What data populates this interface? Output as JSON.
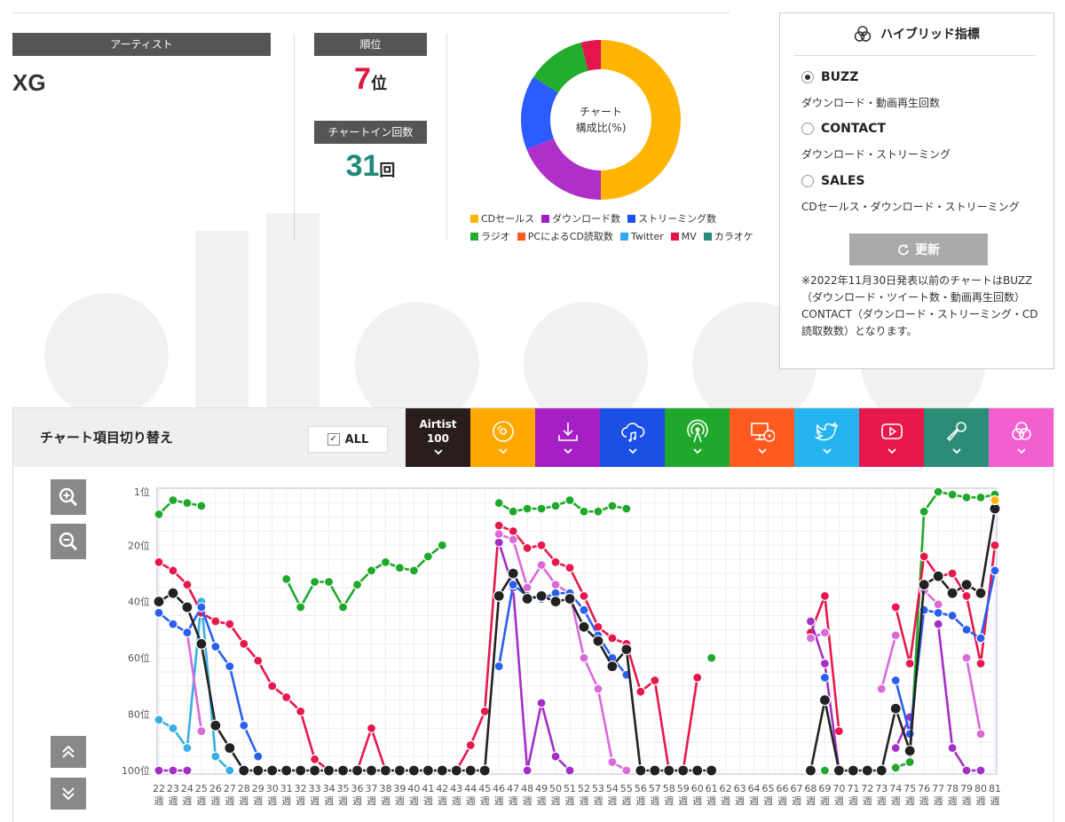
{
  "artist": {
    "label": "アーティスト",
    "name": "XG"
  },
  "rank": {
    "label": "順位",
    "value": "7",
    "unit": "位"
  },
  "chartin": {
    "label": "チャートイン回数",
    "value": "31",
    "unit": "回"
  },
  "donut": {
    "center_line1": "チャート",
    "center_line2": "構成比(%)",
    "slices": [
      {
        "name": "CDセールス",
        "value": 50,
        "color": "#ffb400"
      },
      {
        "name": "ダウンロード数",
        "value": 19,
        "color": "#b02fc8"
      },
      {
        "name": "ストリーミング数",
        "value": 15,
        "color": "#2b5cff"
      },
      {
        "name": "ラジオ",
        "value": 12,
        "color": "#22ad2c"
      },
      {
        "name": "MV",
        "value": 4,
        "color": "#e4154b"
      }
    ]
  },
  "legend": [
    {
      "label": "CDセールス",
      "color": "#ffb400"
    },
    {
      "label": "ダウンロード数",
      "color": "#9a1fc6"
    },
    {
      "label": "ストリーミング数",
      "color": "#1e4fe8"
    },
    {
      "label": "ラジオ",
      "color": "#22ad2c"
    },
    {
      "label": "PCによるCD読取数",
      "color": "#ff5a1f"
    },
    {
      "label": "Twitter",
      "color": "#2aa9ff"
    },
    {
      "label": "MV",
      "color": "#e4154b"
    },
    {
      "label": "カラオケ",
      "color": "#2a8a7a"
    }
  ],
  "hybrid": {
    "title": "ハイブリッド指標",
    "options": [
      {
        "label": "BUZZ",
        "desc": "ダウンロード・動画再生回数",
        "selected": true
      },
      {
        "label": "CONTACT",
        "desc": "ダウンロード・ストリーミング",
        "selected": false
      },
      {
        "label": "SALES",
        "desc": "CDセールス・ダウンロード・ストリーミング",
        "selected": false
      }
    ],
    "update_label": "更新",
    "note": "※2022年11月30日発表以前のチャートはBUZZ（ダウンロード・ツイート数・動画再生回数）CONTACT（ダウンロード・ストリーミング・CD読取数数）となります。"
  },
  "toolbar": {
    "title": "チャート項目切り替え",
    "all_label": "ALL",
    "tabs": [
      {
        "id": "airtist",
        "line1": "Airtist",
        "line2": "100",
        "color": "#2a1e1c",
        "icon": "text"
      },
      {
        "id": "cd",
        "color": "#ffa800",
        "icon": "disc-icon"
      },
      {
        "id": "download",
        "color": "#a61fc4",
        "icon": "download-icon"
      },
      {
        "id": "streaming",
        "color": "#1b50e6",
        "icon": "cloud-music-icon"
      },
      {
        "id": "radio",
        "color": "#1fa82b",
        "icon": "radio-icon"
      },
      {
        "id": "pc-cd",
        "color": "#ff5a1f",
        "icon": "pc-disc-icon"
      },
      {
        "id": "twitter",
        "color": "#24b4f0",
        "icon": "twitter-icon"
      },
      {
        "id": "mv",
        "color": "#e8174c",
        "icon": "play-icon"
      },
      {
        "id": "karaoke",
        "color": "#2b8c77",
        "icon": "mic-icon"
      },
      {
        "id": "hybrid",
        "color": "#f45fd0",
        "icon": "hybrid-icon"
      }
    ]
  },
  "chart_data": {
    "type": "line",
    "x": [
      22,
      23,
      24,
      25,
      26,
      27,
      28,
      29,
      30,
      31,
      32,
      33,
      34,
      35,
      36,
      37,
      38,
      39,
      40,
      41,
      42,
      43,
      44,
      45,
      46,
      47,
      48,
      49,
      50,
      51,
      52,
      53,
      54,
      55,
      56,
      57,
      58,
      59,
      60,
      61,
      62,
      63,
      64,
      65,
      66,
      67,
      68,
      69,
      70,
      71,
      72,
      73,
      74,
      75,
      76,
      77,
      78,
      79,
      80,
      81
    ],
    "x_unit": "週",
    "y_ticks": [
      1,
      20,
      40,
      60,
      80,
      100
    ],
    "y_unit": "位",
    "ylim": [
      1,
      100
    ],
    "y_inverted": true,
    "series": [
      {
        "id": "radio",
        "color": "#1fa82b",
        "values": [
          9,
          4,
          5,
          6,
          null,
          null,
          null,
          null,
          null,
          32,
          42,
          33,
          33,
          42,
          34,
          29,
          26,
          28,
          29,
          24,
          20,
          null,
          null,
          null,
          5,
          8,
          7,
          7,
          6,
          4,
          8,
          8,
          6,
          7,
          null,
          null,
          null,
          null,
          null,
          60,
          null,
          null,
          null,
          null,
          null,
          null,
          null,
          100,
          null,
          null,
          null,
          null,
          99,
          97,
          8,
          1,
          2,
          3,
          3,
          2
        ]
      },
      {
        "id": "twitter",
        "color": "#2fa6e8",
        "values": [
          null,
          null,
          null,
          null,
          null,
          null,
          null,
          null,
          null,
          null,
          null,
          null,
          null,
          null,
          null,
          null,
          null,
          null,
          null,
          null,
          null,
          null,
          null,
          null,
          null,
          null,
          null,
          null,
          null,
          null,
          null,
          null,
          null,
          null,
          null,
          null,
          null,
          null,
          null,
          null,
          null,
          null,
          null,
          null,
          null,
          null,
          null,
          null,
          null,
          null,
          null,
          null,
          null,
          null,
          null,
          null,
          null,
          null,
          null,
          null
        ]
      },
      {
        "id": "twitter-early",
        "color": "#3aaee0",
        "values": [
          82,
          85,
          92,
          40,
          95,
          100,
          null,
          null,
          null,
          null,
          null,
          null,
          null,
          null,
          null,
          null,
          null,
          null,
          null,
          null,
          null,
          null,
          null,
          null,
          null,
          null,
          null,
          null,
          null,
          null,
          null,
          null,
          null,
          null,
          null,
          null,
          null,
          null,
          null,
          null,
          null,
          null,
          null,
          null,
          null,
          null,
          null,
          null,
          null,
          null,
          null,
          null,
          null,
          null,
          null,
          null,
          null,
          null,
          null,
          null
        ]
      },
      {
        "id": "mv",
        "color": "#e8174c",
        "values": [
          26,
          29,
          34,
          44,
          47,
          48,
          55,
          61,
          70,
          74,
          79,
          96,
          100,
          100,
          100,
          85,
          100,
          100,
          100,
          100,
          100,
          100,
          91,
          79,
          13,
          15,
          21,
          20,
          26,
          28,
          38,
          49,
          53,
          55,
          72,
          68,
          100,
          100,
          67,
          null,
          null,
          null,
          null,
          null,
          null,
          null,
          51,
          38,
          86,
          null,
          null,
          null,
          42,
          62,
          24,
          31,
          30,
          38,
          62,
          20
        ]
      },
      {
        "id": "download",
        "color": "#a32fc4",
        "values": [
          100,
          100,
          100,
          null,
          null,
          null,
          null,
          null,
          null,
          null,
          null,
          null,
          null,
          null,
          null,
          null,
          null,
          null,
          null,
          null,
          null,
          null,
          null,
          null,
          19,
          35,
          100,
          76,
          95,
          100,
          null,
          null,
          null,
          null,
          null,
          null,
          null,
          null,
          null,
          null,
          null,
          null,
          null,
          null,
          null,
          null,
          47,
          62,
          100,
          null,
          null,
          null,
          92,
          81,
          null,
          48,
          92,
          100,
          100,
          null
        ]
      },
      {
        "id": "download-lite",
        "color": "#d96ad8",
        "values": [
          null,
          null,
          51,
          86,
          null,
          null,
          null,
          null,
          null,
          null,
          null,
          null,
          null,
          null,
          null,
          null,
          null,
          null,
          null,
          null,
          null,
          null,
          null,
          null,
          16,
          18,
          35,
          27,
          34,
          37,
          60,
          71,
          97,
          100,
          null,
          null,
          null,
          null,
          null,
          null,
          null,
          null,
          null,
          null,
          null,
          null,
          53,
          51,
          null,
          null,
          null,
          71,
          52,
          null,
          36,
          41,
          null,
          60,
          87,
          null
        ]
      },
      {
        "id": "streaming",
        "color": "#2b5ef0",
        "values": [
          44,
          48,
          51,
          42,
          56,
          63,
          84,
          95,
          null,
          null,
          null,
          null,
          null,
          null,
          null,
          null,
          null,
          null,
          null,
          null,
          null,
          null,
          null,
          null,
          63,
          34,
          38,
          39,
          37,
          37,
          43,
          52,
          60,
          66,
          null,
          null,
          null,
          null,
          null,
          null,
          null,
          null,
          null,
          null,
          null,
          null,
          null,
          67,
          null,
          null,
          null,
          null,
          68,
          87,
          43,
          44,
          45,
          50,
          53,
          29
        ]
      },
      {
        "id": "airtist",
        "color": "#222222",
        "values": [
          40,
          37,
          42,
          55,
          84,
          92,
          100,
          100,
          100,
          100,
          100,
          100,
          100,
          100,
          100,
          100,
          100,
          100,
          100,
          100,
          100,
          100,
          100,
          100,
          38,
          30,
          39,
          38,
          40,
          39,
          49,
          54,
          63,
          57,
          100,
          100,
          100,
          100,
          100,
          100,
          null,
          null,
          null,
          null,
          null,
          null,
          100,
          75,
          100,
          100,
          100,
          100,
          78,
          93,
          34,
          31,
          37,
          34,
          37,
          7
        ]
      },
      {
        "id": "cd",
        "color": "#ffb400",
        "values": [
          null,
          null,
          null,
          null,
          null,
          null,
          null,
          null,
          null,
          null,
          null,
          null,
          null,
          null,
          null,
          null,
          null,
          null,
          null,
          null,
          null,
          null,
          null,
          null,
          null,
          null,
          null,
          null,
          null,
          null,
          null,
          null,
          null,
          null,
          null,
          null,
          null,
          null,
          null,
          null,
          null,
          null,
          null,
          null,
          null,
          null,
          null,
          null,
          null,
          null,
          null,
          null,
          null,
          null,
          null,
          null,
          null,
          null,
          null,
          4
        ]
      }
    ]
  }
}
